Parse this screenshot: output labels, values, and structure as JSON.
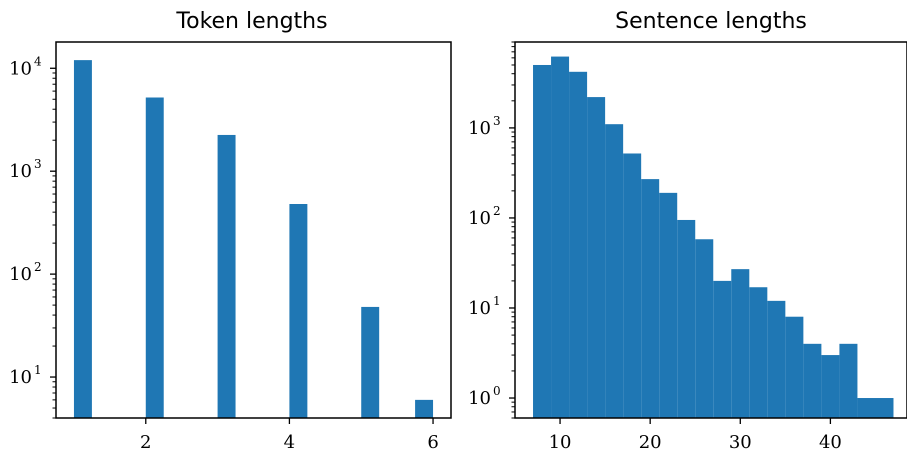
{
  "chart_data": [
    {
      "type": "bar",
      "title": "Token lengths",
      "xlabel": "",
      "ylabel": "",
      "yscale": "log",
      "xlim": [
        0.75,
        6.25
      ],
      "ylim": [
        4,
        18000
      ],
      "x_ticks": [
        2,
        4,
        6
      ],
      "y_ticks": [
        {
          "value": 10,
          "base": "10",
          "exp": "1"
        },
        {
          "value": 100,
          "base": "10",
          "exp": "2"
        },
        {
          "value": 1000,
          "base": "10",
          "exp": "3"
        },
        {
          "value": 10000,
          "base": "10",
          "exp": "4"
        }
      ],
      "grid": false,
      "bars": [
        {
          "x0": 1.0,
          "x1": 1.25,
          "value": 12000
        },
        {
          "x0": 2.0,
          "x1": 2.25,
          "value": 5200
        },
        {
          "x0": 3.0,
          "x1": 3.25,
          "value": 2250
        },
        {
          "x0": 4.0,
          "x1": 4.25,
          "value": 480
        },
        {
          "x0": 5.0,
          "x1": 5.25,
          "value": 48
        },
        {
          "x0": 5.75,
          "x1": 6.0,
          "value": 6
        }
      ]
    },
    {
      "type": "bar",
      "title": "Sentence lengths",
      "xlabel": "",
      "ylabel": "",
      "yscale": "log",
      "xlim": [
        5,
        48.5
      ],
      "ylim": [
        0.6,
        9000
      ],
      "x_ticks": [
        10,
        20,
        30,
        40
      ],
      "y_ticks": [
        {
          "value": 1,
          "base": "10",
          "exp": "0"
        },
        {
          "value": 10,
          "base": "10",
          "exp": "1"
        },
        {
          "value": 100,
          "base": "10",
          "exp": "2"
        },
        {
          "value": 1000,
          "base": "10",
          "exp": "3"
        }
      ],
      "grid": false,
      "bars": [
        {
          "x0": 7,
          "x1": 9,
          "value": 5000
        },
        {
          "x0": 9,
          "x1": 11,
          "value": 6200
        },
        {
          "x0": 11,
          "x1": 13,
          "value": 4200
        },
        {
          "x0": 13,
          "x1": 15,
          "value": 2200
        },
        {
          "x0": 15,
          "x1": 17,
          "value": 1100
        },
        {
          "x0": 17,
          "x1": 19,
          "value": 520
        },
        {
          "x0": 19,
          "x1": 21,
          "value": 270
        },
        {
          "x0": 21,
          "x1": 23,
          "value": 190
        },
        {
          "x0": 23,
          "x1": 25,
          "value": 95
        },
        {
          "x0": 25,
          "x1": 27,
          "value": 58
        },
        {
          "x0": 27,
          "x1": 29,
          "value": 20
        },
        {
          "x0": 29,
          "x1": 31,
          "value": 27
        },
        {
          "x0": 31,
          "x1": 33,
          "value": 17
        },
        {
          "x0": 33,
          "x1": 35,
          "value": 12
        },
        {
          "x0": 35,
          "x1": 37,
          "value": 8
        },
        {
          "x0": 37,
          "x1": 39,
          "value": 4
        },
        {
          "x0": 39,
          "x1": 41,
          "value": 3
        },
        {
          "x0": 41,
          "x1": 43,
          "value": 4
        },
        {
          "x0": 43,
          "x1": 47,
          "value": 1
        }
      ]
    }
  ]
}
